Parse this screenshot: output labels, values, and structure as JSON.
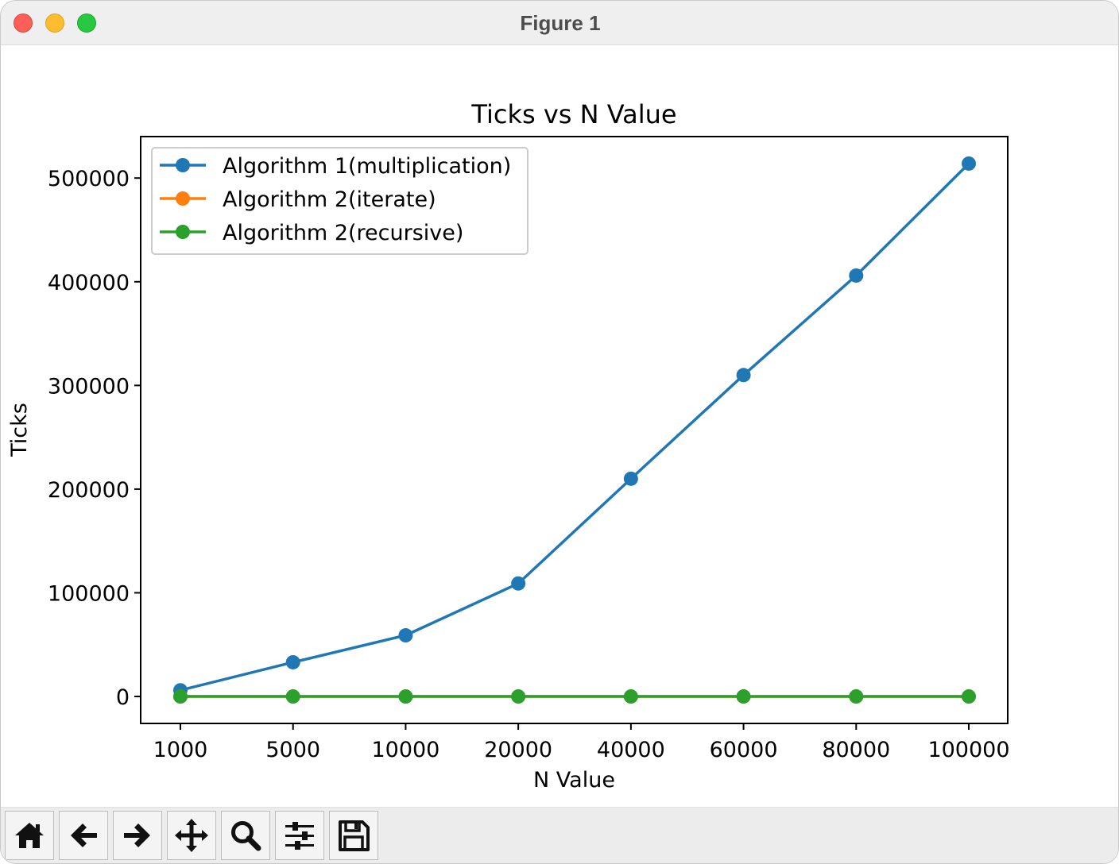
{
  "window": {
    "title": "Figure 1"
  },
  "toolbar": {
    "buttons": [
      {
        "name": "home",
        "icon": "home-icon"
      },
      {
        "name": "back",
        "icon": "arrow-left-icon"
      },
      {
        "name": "forward",
        "icon": "arrow-right-icon"
      },
      {
        "name": "pan",
        "icon": "move-icon"
      },
      {
        "name": "zoom",
        "icon": "magnifier-icon"
      },
      {
        "name": "configure-subplots",
        "icon": "sliders-icon"
      },
      {
        "name": "save",
        "icon": "floppy-disk-icon"
      }
    ]
  },
  "chart_data": {
    "type": "line",
    "title": "Ticks vs N Value",
    "xlabel": "N Value",
    "ylabel": "Ticks",
    "x_scale": "categorical",
    "categories": [
      "1000",
      "5000",
      "10000",
      "20000",
      "40000",
      "60000",
      "80000",
      "100000"
    ],
    "yticks": [
      0,
      100000,
      200000,
      300000,
      400000,
      500000
    ],
    "ylim": [
      -26000,
      540000
    ],
    "grid": false,
    "legend_position": "upper-left",
    "markers": "circle",
    "series": [
      {
        "name": "Algorithm 1(multiplication)",
        "color": "#1f77b4",
        "values": [
          6000,
          33000,
          59000,
          109000,
          210000,
          310000,
          406000,
          514000
        ]
      },
      {
        "name": "Algorithm 2(iterate)",
        "color": "#ff7f0e",
        "values": [
          0,
          0,
          0,
          0,
          0,
          0,
          0,
          0
        ]
      },
      {
        "name": "Algorithm 2(recursive)",
        "color": "#2ca02c",
        "values": [
          0,
          0,
          0,
          0,
          0,
          0,
          0,
          0
        ]
      }
    ]
  }
}
